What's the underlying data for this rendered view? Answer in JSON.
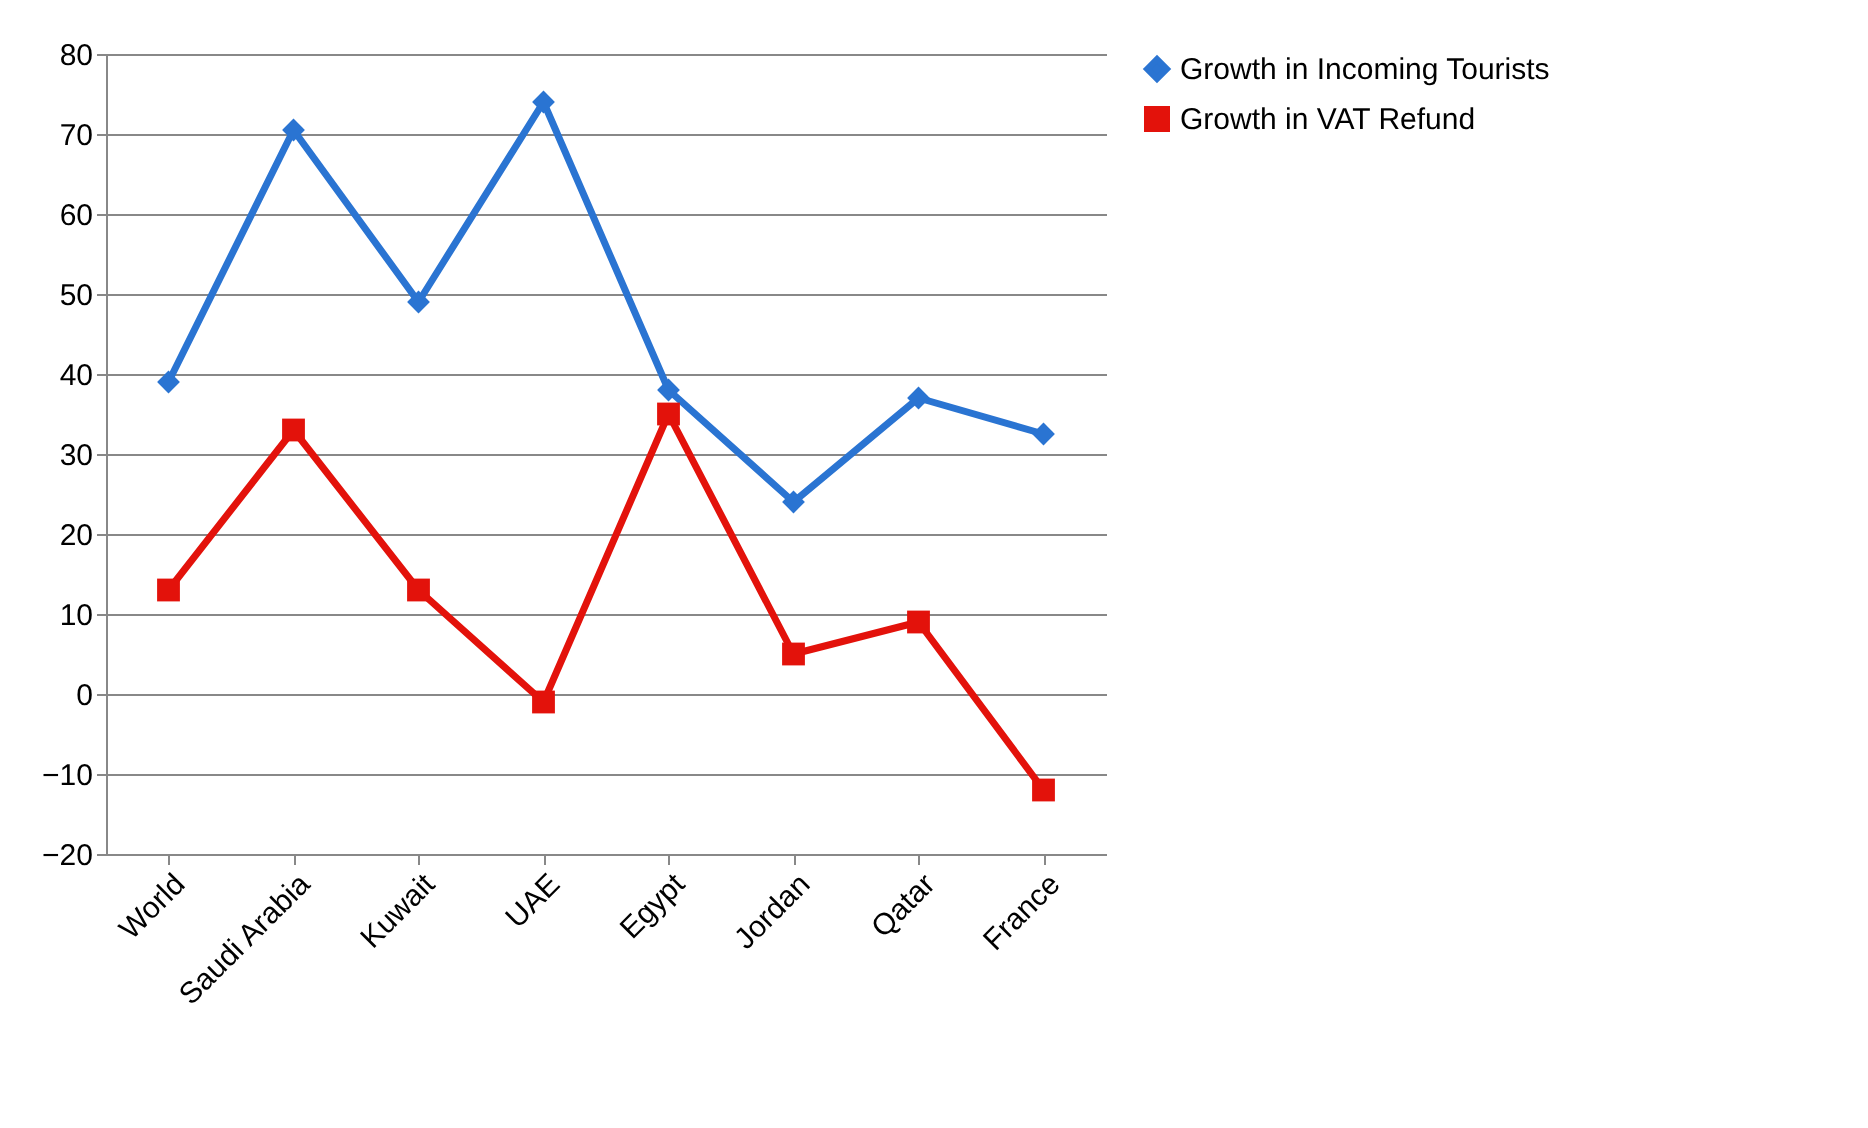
{
  "chart_data": {
    "type": "line",
    "categories": [
      "World",
      "Saudi Arabia",
      "Kuwait",
      "UAE",
      "Egypt",
      "Jordan",
      "Qatar",
      "France"
    ],
    "series": [
      {
        "name": "Growth in Incoming Tourists",
        "color": "#2a74d2",
        "marker": "diamond",
        "values": [
          39,
          70.5,
          49,
          74,
          38,
          24,
          37,
          32.5
        ]
      },
      {
        "name": "Growth in VAT Refund",
        "color": "#e3120b",
        "marker": "square",
        "values": [
          13,
          33,
          13,
          -1,
          35,
          5,
          9,
          -12
        ]
      }
    ],
    "ylim": [
      -20,
      80
    ],
    "yticks": [
      -20,
      -10,
      0,
      10,
      20,
      30,
      40,
      50,
      60,
      70,
      80
    ],
    "grid": "y",
    "legend": "right",
    "line_style": "solid"
  }
}
